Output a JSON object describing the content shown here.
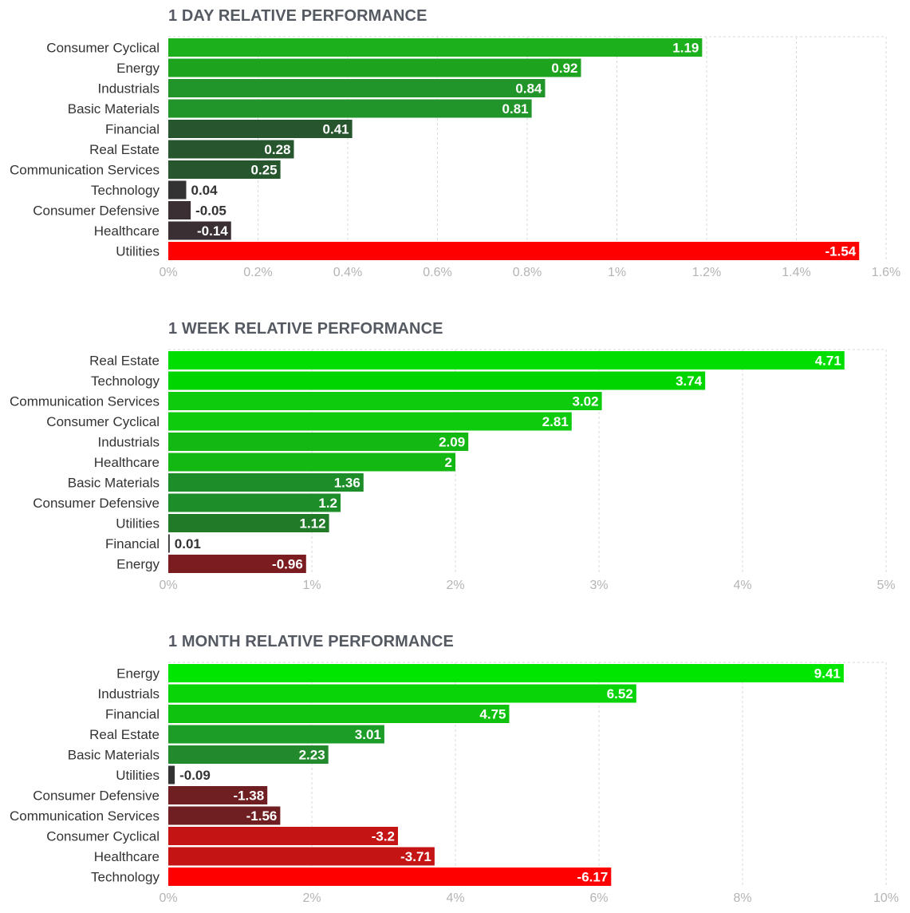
{
  "chart_data": [
    {
      "type": "bar",
      "orientation": "horizontal",
      "title": "1 DAY RELATIVE PERFORMANCE",
      "categories": [
        "Consumer Cyclical",
        "Energy",
        "Industrials",
        "Basic Materials",
        "Financial",
        "Real Estate",
        "Communication Services",
        "Technology",
        "Consumer Defensive",
        "Healthcare",
        "Utilities"
      ],
      "values": [
        1.19,
        0.92,
        0.84,
        0.81,
        0.41,
        0.28,
        0.25,
        0.04,
        -0.05,
        -0.14,
        -1.54
      ],
      "value_labels": [
        "1.19",
        "0.92",
        "0.84",
        "0.81",
        "0.41",
        "0.28",
        "0.25",
        "0.04",
        "-0.05",
        "-0.14",
        "-1.54"
      ],
      "colors": [
        "#1cb11c",
        "#1ea31e",
        "#22952a",
        "#22952a",
        "#26552e",
        "#26552e",
        "#26552e",
        "#333333",
        "#3a2f33",
        "#3a2f33",
        "#ff0000"
      ],
      "bar_magnitude": "absolute",
      "xlim": [
        0,
        1.6
      ],
      "xticks": [
        "0%",
        "0.2%",
        "0.4%",
        "0.6%",
        "0.8%",
        "1%",
        "1.2%",
        "1.4%",
        "1.6%"
      ],
      "grid": true,
      "xlabel": "",
      "ylabel": ""
    },
    {
      "type": "bar",
      "orientation": "horizontal",
      "title": "1 WEEK RELATIVE PERFORMANCE",
      "categories": [
        "Real Estate",
        "Technology",
        "Communication Services",
        "Consumer Cyclical",
        "Industrials",
        "Healthcare",
        "Basic Materials",
        "Consumer Defensive",
        "Utilities",
        "Financial",
        "Energy"
      ],
      "values": [
        4.71,
        3.74,
        3.02,
        2.81,
        2.09,
        2,
        1.36,
        1.2,
        1.12,
        0.01,
        -0.96
      ],
      "value_labels": [
        "4.71",
        "3.74",
        "3.02",
        "2.81",
        "2.09",
        "2",
        "1.36",
        "1.2",
        "1.12",
        "0.01",
        "-0.96"
      ],
      "colors": [
        "#00de00",
        "#00d500",
        "#0ecb0e",
        "#0ecb0e",
        "#13b813",
        "#13b813",
        "#1c8d28",
        "#1c8d28",
        "#207a27",
        "#333333",
        "#7b1c20"
      ],
      "bar_magnitude": "absolute",
      "xlim": [
        0,
        5
      ],
      "xticks": [
        "0%",
        "1%",
        "2%",
        "3%",
        "4%",
        "5%"
      ],
      "grid": true,
      "xlabel": "",
      "ylabel": ""
    },
    {
      "type": "bar",
      "orientation": "horizontal",
      "title": "1 MONTH RELATIVE PERFORMANCE",
      "categories": [
        "Energy",
        "Industrials",
        "Financial",
        "Real Estate",
        "Basic Materials",
        "Utilities",
        "Consumer Defensive",
        "Communication Services",
        "Consumer Cyclical",
        "Healthcare",
        "Technology"
      ],
      "values": [
        9.41,
        6.52,
        4.75,
        3.01,
        2.23,
        -0.09,
        -1.38,
        -1.56,
        -3.2,
        -3.71,
        -6.17
      ],
      "value_labels": [
        "9.41",
        "6.52",
        "4.75",
        "3.01",
        "2.23",
        "-0.09",
        "-1.38",
        "-1.56",
        "-3.2",
        "-3.71",
        "-6.17"
      ],
      "colors": [
        "#00e600",
        "#08d408",
        "#0fc20f",
        "#1c9d28",
        "#228a2c",
        "#333333",
        "#6f1f22",
        "#6f1f22",
        "#c41414",
        "#c41414",
        "#ff0000"
      ],
      "bar_magnitude": "absolute",
      "xlim": [
        0,
        10
      ],
      "xticks": [
        "0%",
        "2%",
        "4%",
        "6%",
        "8%",
        "10%"
      ],
      "grid": true,
      "xlabel": "",
      "ylabel": ""
    }
  ]
}
